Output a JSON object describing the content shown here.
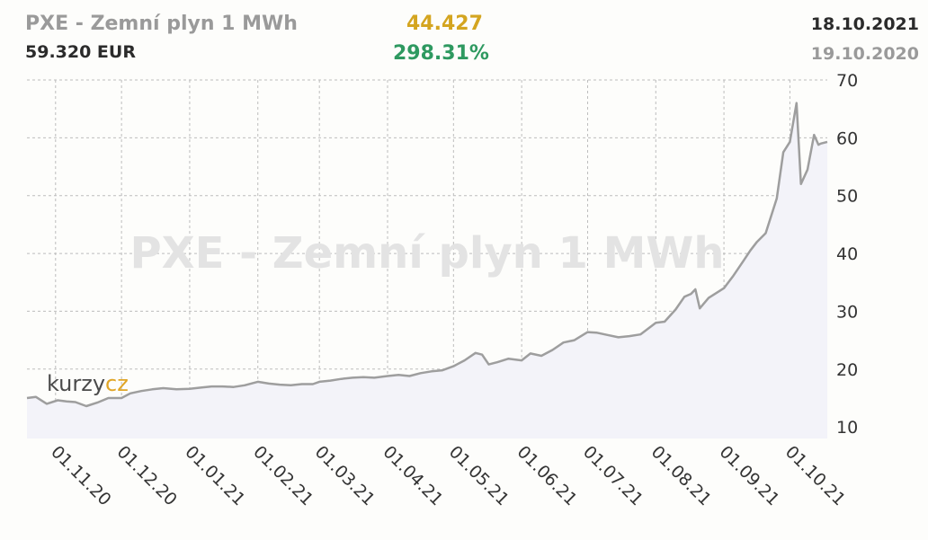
{
  "header": {
    "title": "PXE - Zemní plyn 1 MWh",
    "price": "59.320 EUR",
    "change_abs": "44.427",
    "change_pct": "298.31%",
    "date_end": "18.10.2021",
    "date_start": "19.10.2020"
  },
  "watermark": "PXE - Zemní plyn 1 MWh",
  "logo": {
    "part1": "kurzy",
    "part2": "cz"
  },
  "colors": {
    "line": "#9e9e9e",
    "area": "#f3f3f9",
    "grid": "#bdbdbd",
    "title": "#9a9a9a",
    "change_abs": "#d4a520",
    "change_pct": "#2e9960"
  },
  "chart_data": {
    "type": "area",
    "title": "PXE - Zemní plyn 1 MWh",
    "xlabel": "",
    "ylabel": "",
    "x_range": [
      "2020-10-19",
      "2021-10-18"
    ],
    "ylim": [
      8,
      70
    ],
    "y_ticks": [
      10,
      20,
      30,
      40,
      50,
      60,
      70
    ],
    "x_ticks": [
      "01.11.20",
      "01.12.20",
      "01.01.21",
      "01.02.21",
      "01.03.21",
      "01.04.21",
      "01.05.21",
      "01.06.21",
      "01.07.21",
      "01.08.21",
      "01.09.21",
      "01.10.21"
    ],
    "grid": true,
    "series": [
      {
        "x": [
          "2020-10-19",
          "2020-10-23",
          "2020-10-28",
          "2020-11-02",
          "2020-11-06",
          "2020-11-10",
          "2020-11-15",
          "2020-11-20",
          "2020-11-25",
          "2020-12-01",
          "2020-12-05",
          "2020-12-10",
          "2020-12-15",
          "2020-12-20",
          "2020-12-26",
          "2021-01-01",
          "2021-01-06",
          "2021-01-11",
          "2021-01-16",
          "2021-01-21",
          "2021-01-26",
          "2021-02-01",
          "2021-02-06",
          "2021-02-11",
          "2021-02-16",
          "2021-02-21",
          "2021-02-26",
          "2021-03-01",
          "2021-03-06",
          "2021-03-11",
          "2021-03-16",
          "2021-03-21",
          "2021-03-26",
          "2021-04-01",
          "2021-04-06",
          "2021-04-11",
          "2021-04-16",
          "2021-04-21",
          "2021-04-26",
          "2021-05-01",
          "2021-05-06",
          "2021-05-11",
          "2021-05-14",
          "2021-05-17",
          "2021-05-21",
          "2021-05-26",
          "2021-06-01",
          "2021-06-05",
          "2021-06-10",
          "2021-06-15",
          "2021-06-20",
          "2021-06-25",
          "2021-07-01",
          "2021-07-05",
          "2021-07-10",
          "2021-07-15",
          "2021-07-20",
          "2021-07-25",
          "2021-08-01",
          "2021-08-05",
          "2021-08-10",
          "2021-08-14",
          "2021-08-17",
          "2021-08-19",
          "2021-08-21",
          "2021-08-25",
          "2021-09-01",
          "2021-09-05",
          "2021-09-10",
          "2021-09-13",
          "2021-09-16",
          "2021-09-20",
          "2021-09-25",
          "2021-09-28",
          "2021-10-01",
          "2021-10-04",
          "2021-10-06",
          "2021-10-09",
          "2021-10-12",
          "2021-10-14",
          "2021-10-15",
          "2021-10-18"
        ],
        "values": [
          15.0,
          15.2,
          14.0,
          14.6,
          14.4,
          14.3,
          13.6,
          14.2,
          15.0,
          15.0,
          15.8,
          16.2,
          16.5,
          16.7,
          16.5,
          16.6,
          16.8,
          17.0,
          17.0,
          16.9,
          17.2,
          17.8,
          17.5,
          17.3,
          17.2,
          17.4,
          17.4,
          17.8,
          18.0,
          18.3,
          18.5,
          18.6,
          18.5,
          18.8,
          19.0,
          18.8,
          19.3,
          19.6,
          19.8,
          20.5,
          21.5,
          22.8,
          22.5,
          20.8,
          21.2,
          21.8,
          21.5,
          22.7,
          22.3,
          23.3,
          24.6,
          25.0,
          26.4,
          26.3,
          25.9,
          25.5,
          25.7,
          26.0,
          28.0,
          28.2,
          30.3,
          32.5,
          33.0,
          33.8,
          30.5,
          32.3,
          34.0,
          36.0,
          38.8,
          40.5,
          42.0,
          43.5,
          49.5,
          57.5,
          59.3,
          66.0,
          52.0,
          54.5,
          60.5,
          58.8,
          59.0,
          59.3
        ]
      }
    ]
  }
}
